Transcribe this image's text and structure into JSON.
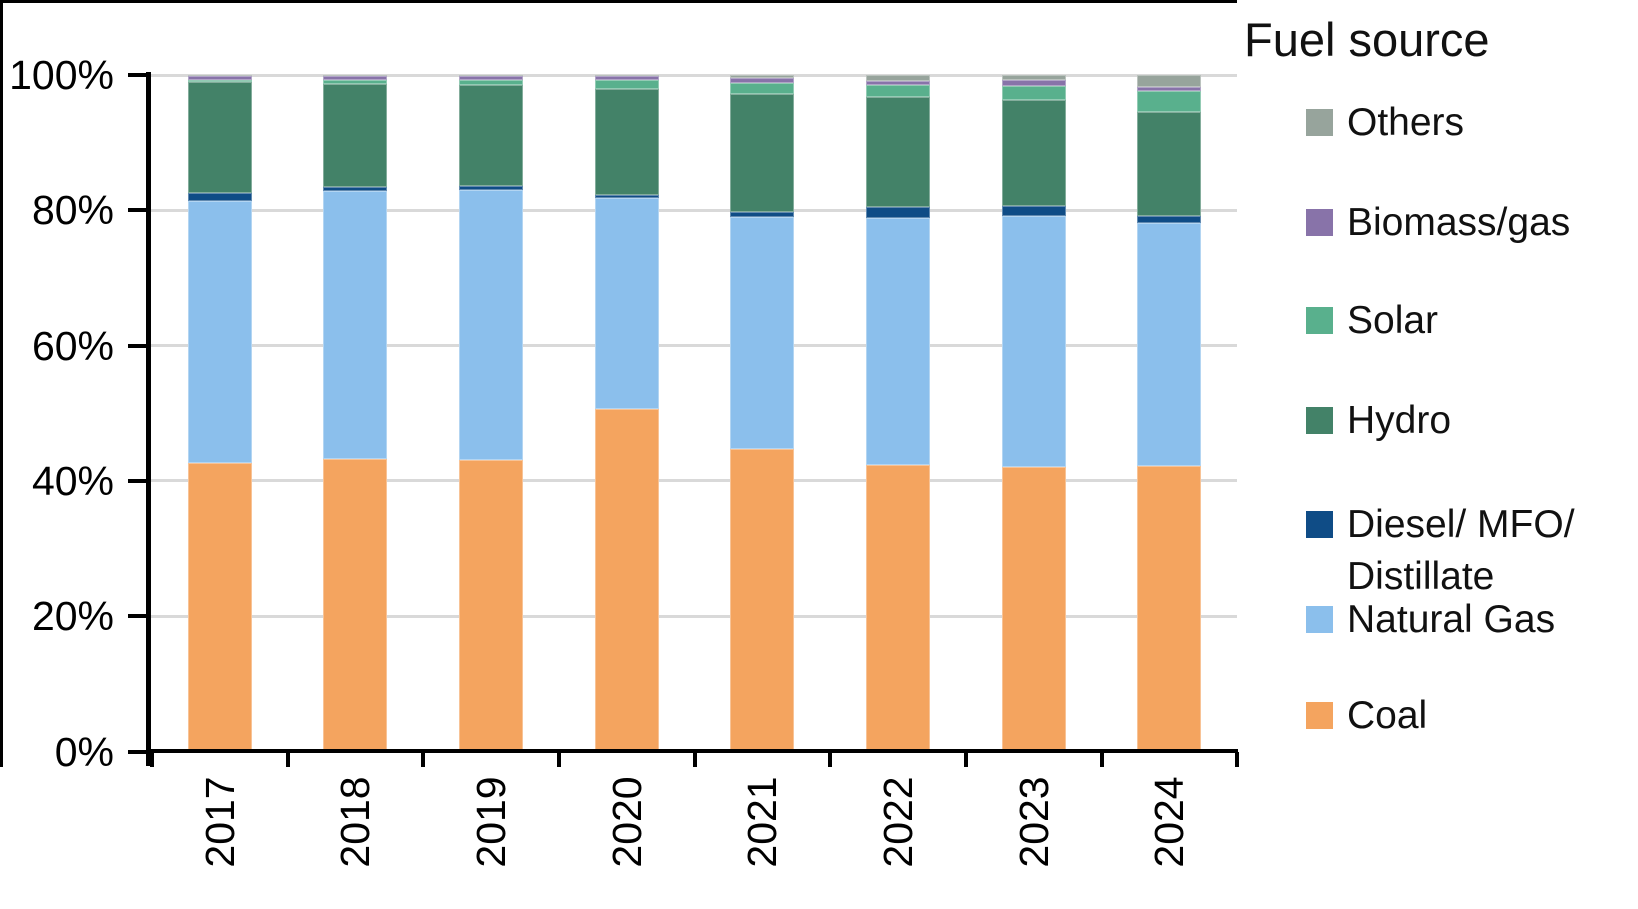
{
  "chart_data": {
    "type": "bar",
    "stacked": true,
    "orientation": "vertical",
    "title": "",
    "xlabel": "",
    "ylabel": "",
    "units": "percent",
    "ylim": [
      0,
      100
    ],
    "grid": "horizontal",
    "y_tick_labels": [
      "0%",
      "20%",
      "40%",
      "60%",
      "80%",
      "100%"
    ],
    "categories": [
      "2017",
      "2018",
      "2019",
      "2020",
      "2021",
      "2022",
      "2023",
      "2024"
    ],
    "series": [
      {
        "name": "Coal",
        "color": "#F4A45F",
        "values": [
          42.7,
          43.2,
          43.1,
          50.6,
          44.7,
          42.3,
          42.0,
          42.2
        ]
      },
      {
        "name": "Natural Gas",
        "color": "#8BBFEC",
        "values": [
          38.7,
          39.7,
          39.9,
          31.2,
          34.3,
          36.5,
          37.1,
          35.9
        ]
      },
      {
        "name": "Diesel/ MFO/ Distillate",
        "color": "#0F4C86",
        "values": [
          1.1,
          0.6,
          0.6,
          0.4,
          0.8,
          1.7,
          1.6,
          1.0
        ]
      },
      {
        "name": "Hydro",
        "color": "#438268",
        "values": [
          16.4,
          15.2,
          14.9,
          15.7,
          17.4,
          16.2,
          15.6,
          15.4
        ]
      },
      {
        "name": "Solar",
        "color": "#59B08D",
        "values": [
          0.3,
          0.5,
          0.7,
          1.4,
          1.6,
          1.8,
          2.1,
          3.2
        ]
      },
      {
        "name": "Biomass/gas",
        "color": "#8873A9",
        "values": [
          0.7,
          0.7,
          0.6,
          0.6,
          0.7,
          0.6,
          0.8,
          0.6
        ]
      },
      {
        "name": "Others",
        "color": "#97A49C",
        "values": [
          0.1,
          0.1,
          0.2,
          0.1,
          0.5,
          0.9,
          0.8,
          1.7
        ]
      }
    ],
    "legend_title": "Fuel source",
    "legend_position": "right",
    "legend": [
      {
        "label": "Others",
        "color": "#97A49C"
      },
      {
        "label": "Biomass/gas",
        "color": "#8873A9"
      },
      {
        "label": "Solar",
        "color": "#59B08D"
      },
      {
        "label": "Hydro",
        "color": "#438268"
      },
      {
        "label": "Diesel/ MFO/ Distillate",
        "color": "#0F4C86"
      },
      {
        "label": "Natural Gas",
        "color": "#8BBFEC"
      },
      {
        "label": "Coal",
        "color": "#F4A45F"
      }
    ]
  }
}
